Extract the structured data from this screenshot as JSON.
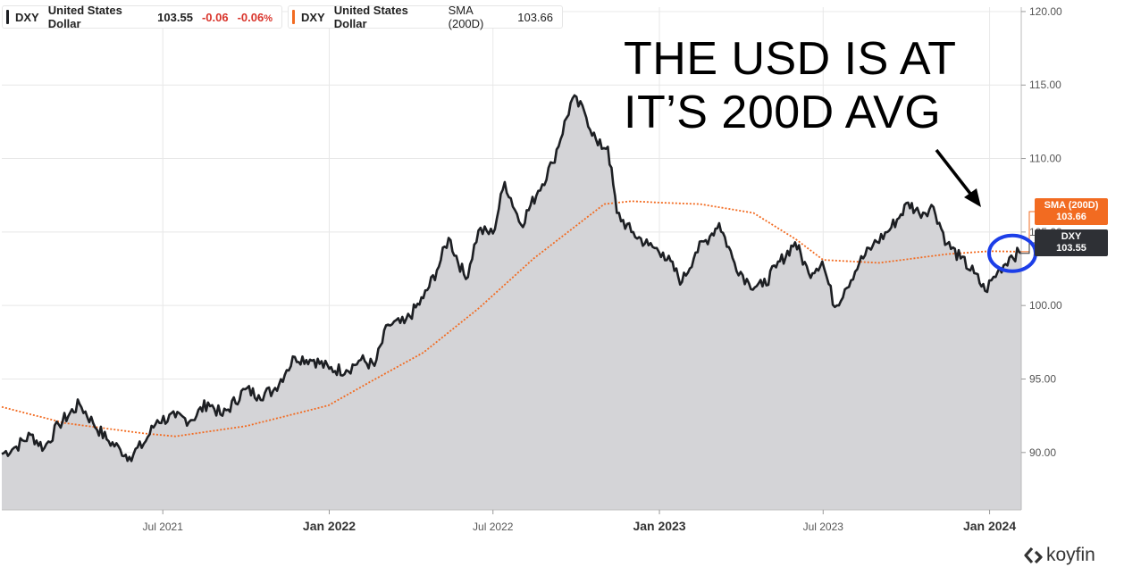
{
  "legend": [
    {
      "ticker": "DXY",
      "name": "United States Dollar",
      "value": "103.55",
      "change": "-0.06",
      "change_pct": "-0.06",
      "pct_sign": "%",
      "color": "#1d1f23"
    },
    {
      "ticker": "DXY",
      "name": "United States Dollar",
      "indicator": "SMA (200D)",
      "value": "103.66",
      "color": "#f26b21"
    }
  ],
  "annotation": {
    "line1": "THE USD IS AT",
    "line2": "IT’S 200D AVG"
  },
  "tags": {
    "sma": {
      "label": "SMA (200D)",
      "value": "103.66",
      "color": "#f26b21"
    },
    "dxy": {
      "label": "DXY",
      "value": "103.55",
      "color": "#2e3035"
    }
  },
  "brand": "koyfin",
  "colors": {
    "price_line": "#1d1f23",
    "area_fill": "#d4d4d7",
    "sma_line": "#f26b21",
    "highlight_circle": "#1c3ee8",
    "grid": "#e8e8e8"
  },
  "chart_data": {
    "type": "line",
    "x_range": [
      "2021-01-04",
      "2024-02-05"
    ],
    "ylim": [
      86.1,
      120.3
    ],
    "grid": true,
    "legend_placement": "top-left",
    "y_ticks": [
      "90.00",
      "95.00",
      "100.00",
      "105.00",
      "110.00",
      "115.00",
      "120.00"
    ],
    "y_tick_values": [
      90.0,
      95.0,
      100.0,
      105.0,
      110.0,
      115.0,
      120.0
    ],
    "x_ticks": [
      {
        "label": "Jul 2021",
        "date": "2021-07-01",
        "bold": false
      },
      {
        "label": "Jan 2022",
        "date": "2022-01-01",
        "bold": true
      },
      {
        "label": "Jul 2022",
        "date": "2022-07-01",
        "bold": false
      },
      {
        "label": "Jan 2023",
        "date": "2023-01-01",
        "bold": true
      },
      {
        "label": "Jul 2023",
        "date": "2023-07-01",
        "bold": false
      },
      {
        "label": "Jan 2024",
        "date": "2024-01-01",
        "bold": true
      }
    ],
    "series": [
      {
        "name": "DXY",
        "style": "line-area",
        "x": [
          "2021-01-04",
          "2021-01-20",
          "2021-02-05",
          "2021-02-20",
          "2021-03-08",
          "2021-03-31",
          "2021-04-15",
          "2021-04-30",
          "2021-05-15",
          "2021-05-25",
          "2021-06-10",
          "2021-06-25",
          "2021-07-15",
          "2021-08-01",
          "2021-08-20",
          "2021-09-05",
          "2021-09-30",
          "2021-10-15",
          "2021-10-31",
          "2021-11-15",
          "2021-11-24",
          "2021-12-15",
          "2022-01-01",
          "2022-01-20",
          "2022-02-05",
          "2022-02-20",
          "2022-03-07",
          "2022-03-25",
          "2022-04-15",
          "2022-04-30",
          "2022-05-13",
          "2022-06-01",
          "2022-06-15",
          "2022-07-01",
          "2022-07-14",
          "2022-08-01",
          "2022-08-20",
          "2022-09-05",
          "2022-09-27",
          "2022-10-10",
          "2022-10-25",
          "2022-11-05",
          "2022-11-15",
          "2022-12-01",
          "2022-12-20",
          "2023-01-05",
          "2023-01-26",
          "2023-02-10",
          "2023-02-28",
          "2023-03-08",
          "2023-03-25",
          "2023-04-10",
          "2023-04-25",
          "2023-05-10",
          "2023-05-31",
          "2023-06-15",
          "2023-06-30",
          "2023-07-14",
          "2023-07-25",
          "2023-08-10",
          "2023-08-25",
          "2023-09-10",
          "2023-09-25",
          "2023-10-03",
          "2023-10-15",
          "2023-10-31",
          "2023-11-15",
          "2023-11-30",
          "2023-12-15",
          "2023-12-27",
          "2024-01-10",
          "2024-01-25",
          "2024-02-05"
        ],
        "values": [
          89.9,
          90.4,
          91.2,
          90.3,
          91.9,
          93.3,
          92.0,
          90.9,
          90.2,
          89.7,
          90.6,
          92.2,
          92.4,
          92.2,
          93.4,
          92.5,
          94.3,
          93.9,
          94.2,
          95.6,
          96.5,
          96.3,
          95.7,
          95.6,
          96.3,
          95.9,
          98.7,
          98.8,
          100.5,
          102.4,
          104.6,
          101.8,
          105.1,
          104.9,
          108.4,
          105.5,
          107.8,
          109.7,
          114.1,
          113.2,
          110.9,
          110.8,
          106.3,
          105.0,
          104.1,
          103.6,
          101.6,
          103.6,
          104.9,
          105.6,
          102.9,
          101.5,
          101.3,
          102.6,
          104.3,
          102.2,
          103.0,
          99.9,
          101.1,
          102.9,
          104.1,
          105.0,
          106.2,
          107.0,
          106.3,
          106.7,
          104.2,
          103.2,
          102.2,
          101.0,
          102.3,
          103.4,
          103.55
        ]
      },
      {
        "name": "SMA (200D)",
        "style": "dotted",
        "x": [
          "2021-01-04",
          "2021-03-15",
          "2021-06-10",
          "2021-07-15",
          "2021-10-01",
          "2021-12-31",
          "2022-02-15",
          "2022-04-15",
          "2022-06-15",
          "2022-08-15",
          "2022-10-15",
          "2022-11-01",
          "2022-12-01",
          "2023-01-01",
          "2023-02-15",
          "2023-04-15",
          "2023-06-01",
          "2023-07-01",
          "2023-09-01",
          "2023-11-15",
          "2024-01-01",
          "2024-02-05"
        ],
        "values": [
          93.1,
          92.0,
          91.3,
          91.1,
          91.8,
          93.2,
          94.8,
          96.8,
          99.8,
          103.2,
          106.1,
          106.9,
          107.1,
          107.0,
          106.9,
          106.3,
          104.5,
          103.1,
          102.9,
          103.5,
          103.7,
          103.66
        ]
      }
    ],
    "last_values": {
      "DXY": "103.55",
      "SMA (200D)": "103.66"
    }
  }
}
